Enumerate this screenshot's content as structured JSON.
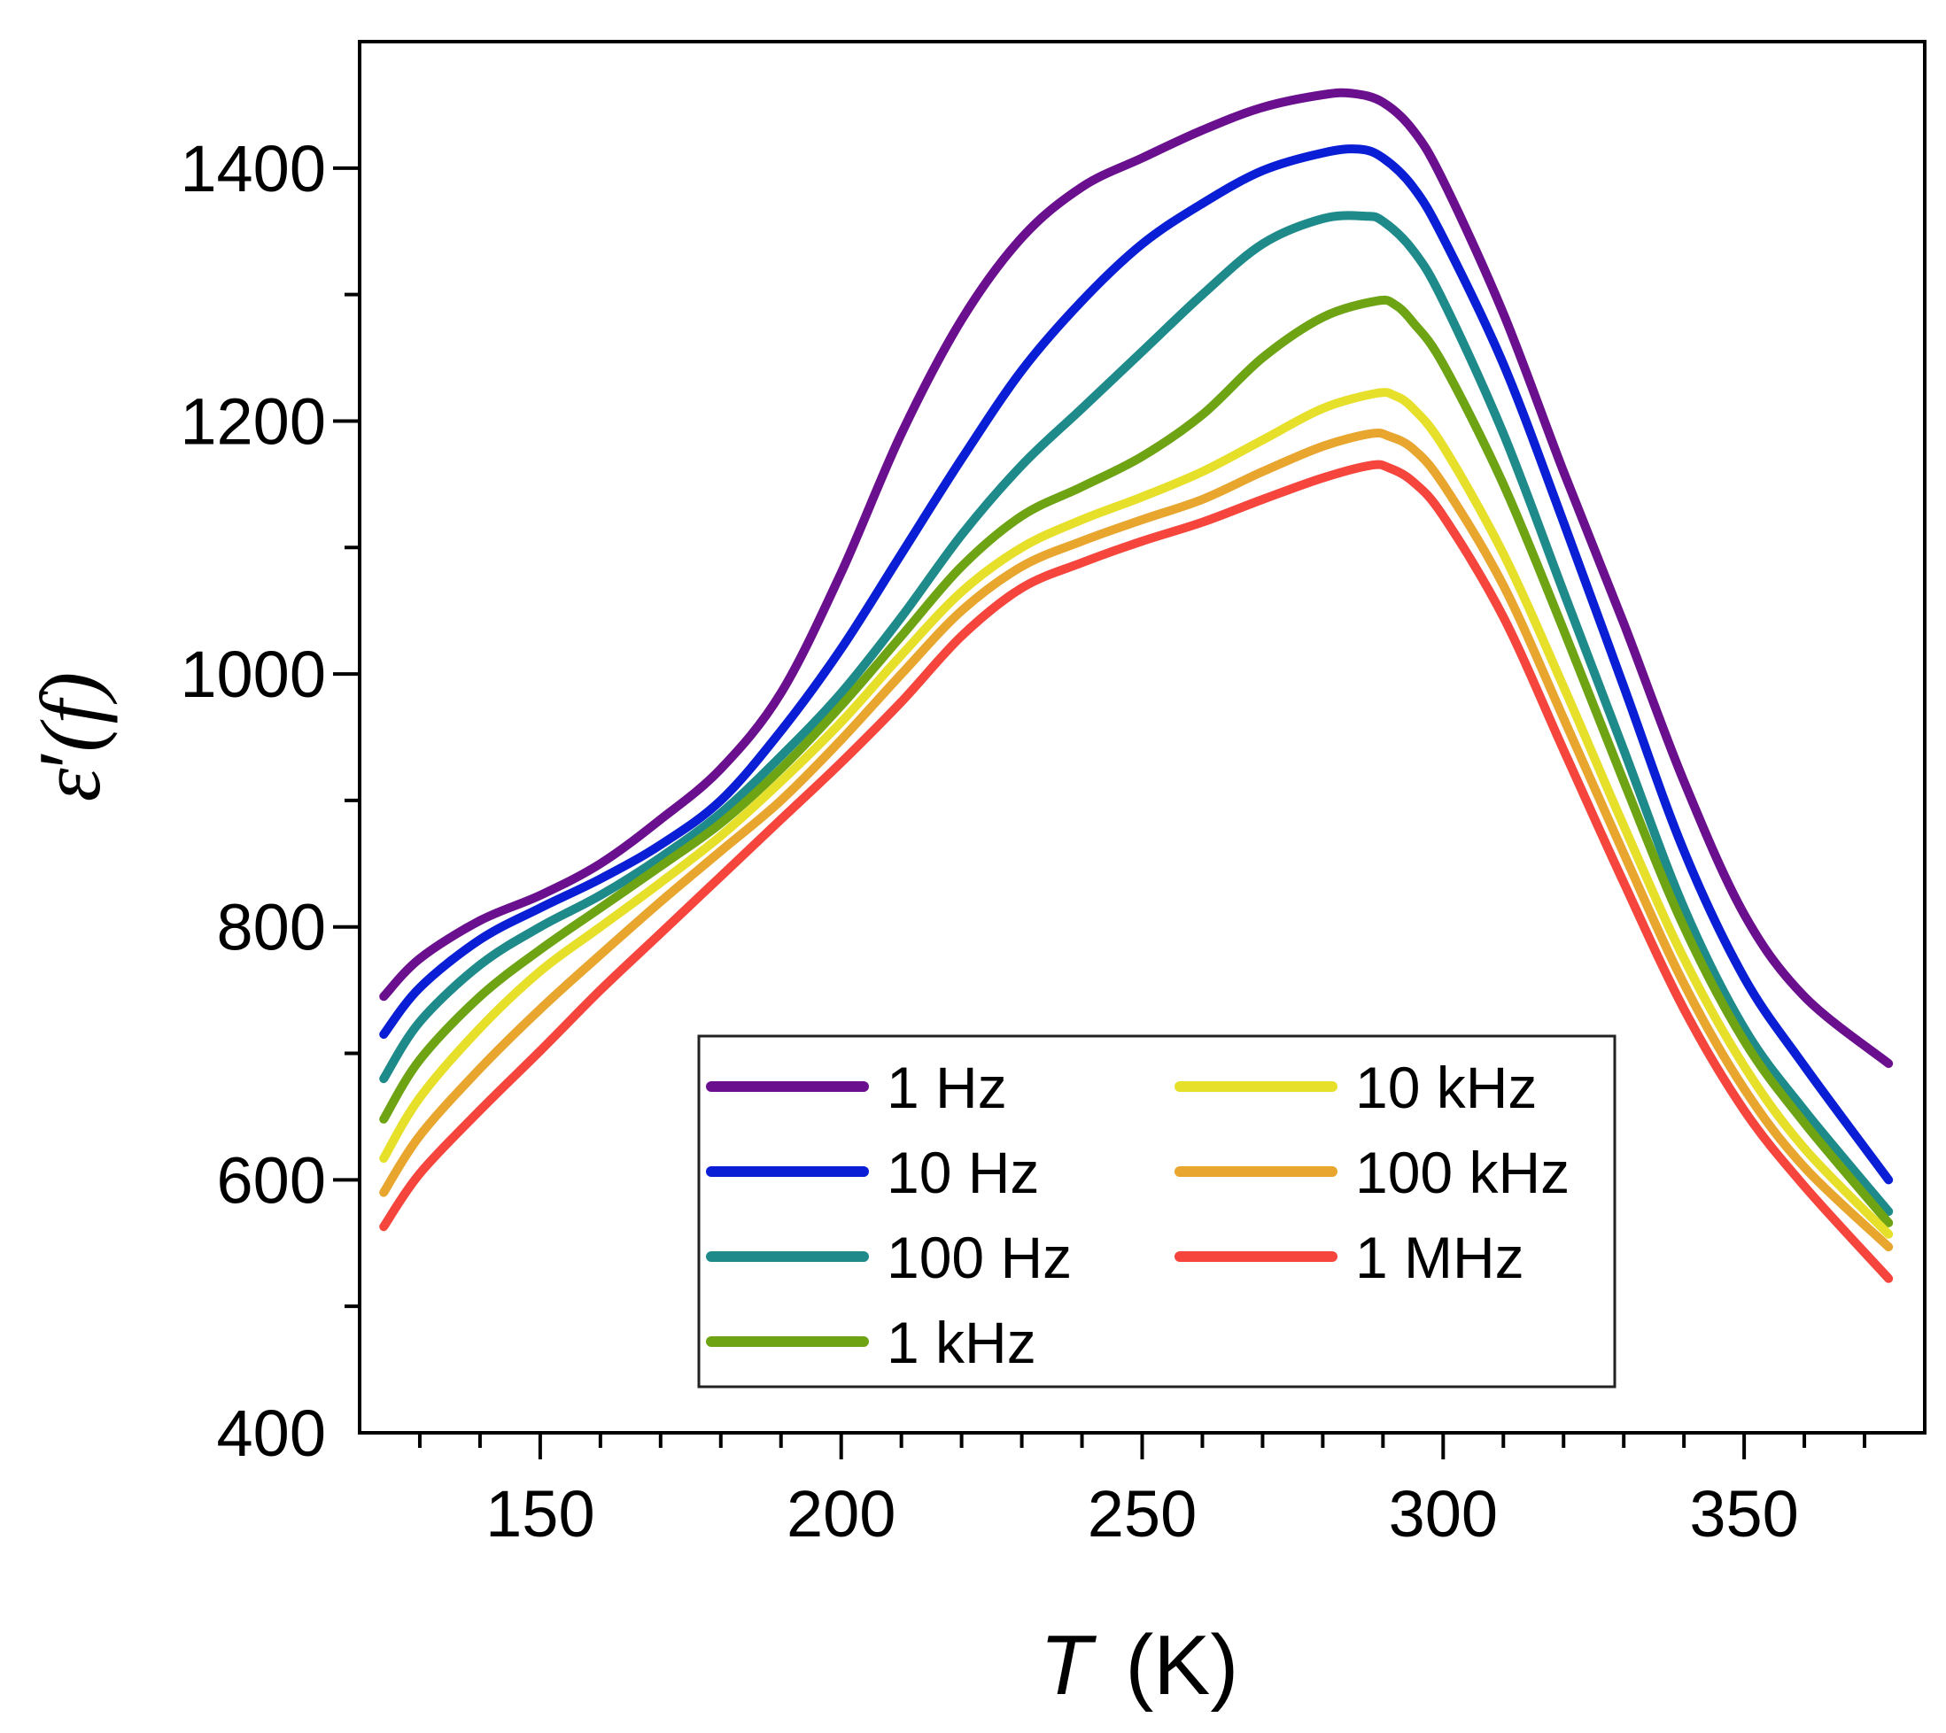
{
  "chart_data": {
    "type": "line",
    "xlabel": {
      "symbol": "T",
      "unit": "(K)"
    },
    "ylabel": {
      "symbol": "ε",
      "prime": "′",
      "arg": "(f)"
    },
    "xlim": [
      120,
      380
    ],
    "ylim": [
      400,
      1500
    ],
    "xticks": [
      150,
      200,
      250,
      300,
      350
    ],
    "yticks": [
      400,
      600,
      800,
      1000,
      1200,
      1400
    ],
    "legend_position": "lower-center",
    "series": [
      {
        "name": "1 Hz",
        "color": "#6a0f8e",
        "x": [
          124,
          130,
          140,
          150,
          160,
          170,
          180,
          190,
          200,
          210,
          220,
          230,
          240,
          250,
          260,
          270,
          280,
          285,
          290,
          295,
          300,
          310,
          320,
          330,
          340,
          350,
          360,
          374
        ],
        "y": [
          745,
          775,
          805,
          825,
          850,
          885,
          925,
          985,
          1080,
          1190,
          1280,
          1345,
          1385,
          1408,
          1430,
          1448,
          1458,
          1459,
          1452,
          1430,
          1390,
          1285,
          1160,
          1040,
          915,
          810,
          745,
          692
        ]
      },
      {
        "name": "10 Hz",
        "color": "#0a1ed6",
        "x": [
          124,
          130,
          140,
          150,
          160,
          170,
          180,
          190,
          200,
          210,
          220,
          230,
          240,
          250,
          260,
          270,
          280,
          286,
          290,
          295,
          300,
          310,
          320,
          330,
          340,
          350,
          360,
          374
        ],
        "y": [
          715,
          752,
          790,
          815,
          838,
          865,
          900,
          955,
          1020,
          1095,
          1170,
          1240,
          1295,
          1340,
          1372,
          1398,
          1412,
          1415,
          1408,
          1385,
          1345,
          1245,
          1120,
          990,
          860,
          760,
          690,
          600
        ]
      },
      {
        "name": "100 Hz",
        "color": "#1e8a8a",
        "x": [
          124,
          130,
          140,
          150,
          160,
          170,
          180,
          190,
          200,
          210,
          220,
          230,
          240,
          250,
          260,
          270,
          280,
          287,
          290,
          295,
          300,
          310,
          320,
          330,
          340,
          350,
          360,
          374
        ],
        "y": [
          680,
          725,
          770,
          800,
          825,
          855,
          890,
          935,
          985,
          1045,
          1110,
          1165,
          1210,
          1255,
          1300,
          1340,
          1360,
          1362,
          1358,
          1335,
          1295,
          1190,
          1065,
          940,
          815,
          720,
          655,
          575
        ]
      },
      {
        "name": "1 kHz",
        "color": "#6ea314",
        "x": [
          124,
          130,
          140,
          150,
          160,
          170,
          180,
          190,
          200,
          210,
          220,
          230,
          240,
          250,
          260,
          270,
          280,
          289,
          292,
          295,
          300,
          310,
          320,
          330,
          340,
          350,
          360,
          374
        ],
        "y": [
          648,
          695,
          745,
          782,
          815,
          848,
          882,
          925,
          975,
          1030,
          1085,
          1125,
          1148,
          1172,
          1205,
          1250,
          1282,
          1295,
          1292,
          1278,
          1245,
          1150,
          1035,
          915,
          800,
          710,
          645,
          566
        ]
      },
      {
        "name": "10 kHz",
        "color": "#e6e02a",
        "x": [
          124,
          130,
          140,
          150,
          160,
          170,
          180,
          190,
          200,
          210,
          220,
          230,
          240,
          250,
          260,
          270,
          280,
          289,
          292,
          295,
          300,
          310,
          320,
          330,
          340,
          350,
          360,
          374
        ],
        "y": [
          617,
          665,
          720,
          765,
          800,
          835,
          872,
          915,
          962,
          1015,
          1065,
          1100,
          1122,
          1140,
          1160,
          1185,
          1210,
          1222,
          1220,
          1210,
          1180,
          1095,
          990,
          880,
          775,
          690,
          625,
          557
        ]
      },
      {
        "name": "100 kHz",
        "color": "#e8a62e",
        "x": [
          124,
          130,
          140,
          150,
          160,
          170,
          180,
          190,
          200,
          210,
          220,
          230,
          240,
          250,
          260,
          270,
          280,
          288,
          291,
          295,
          300,
          310,
          320,
          330,
          340,
          350,
          360,
          374
        ],
        "y": [
          590,
          635,
          688,
          735,
          778,
          820,
          860,
          900,
          948,
          1000,
          1050,
          1085,
          1105,
          1122,
          1138,
          1160,
          1180,
          1190,
          1188,
          1178,
          1150,
          1070,
          965,
          858,
          755,
          672,
          610,
          547
        ]
      },
      {
        "name": "1 MHz",
        "color": "#f5453c",
        "x": [
          124,
          130,
          140,
          150,
          160,
          170,
          180,
          190,
          200,
          210,
          220,
          230,
          240,
          250,
          260,
          270,
          280,
          288,
          291,
          295,
          300,
          310,
          320,
          330,
          340,
          350,
          360,
          374
        ],
        "y": [
          563,
          605,
          655,
          702,
          750,
          795,
          840,
          885,
          930,
          978,
          1030,
          1068,
          1088,
          1105,
          1120,
          1138,
          1155,
          1165,
          1163,
          1152,
          1125,
          1045,
          940,
          835,
          735,
          655,
          595,
          522
        ]
      }
    ]
  }
}
